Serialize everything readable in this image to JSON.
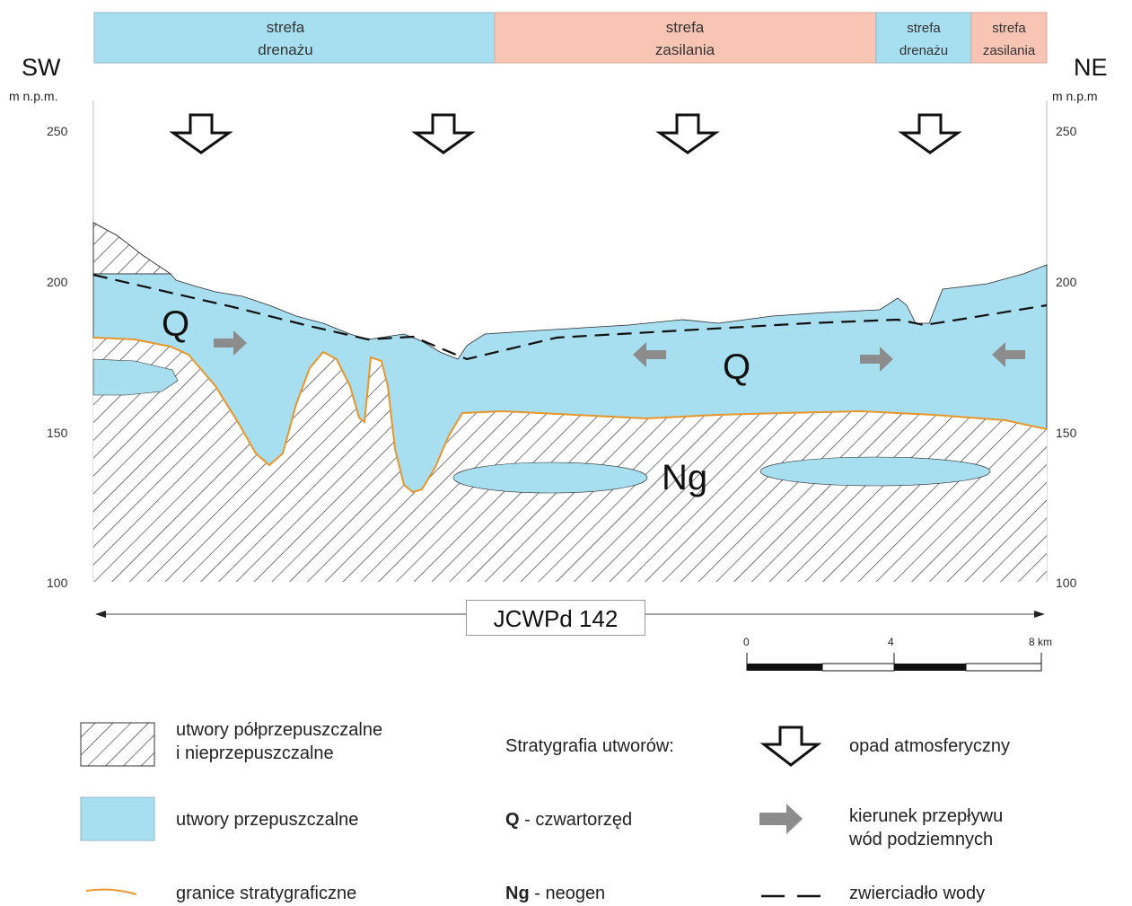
{
  "zones": [
    {
      "line1": "strefa",
      "line2": "drenażu",
      "color": "#a8dff0"
    },
    {
      "line1": "strefa",
      "line2": "zasilania",
      "color": "#f8c5b5"
    },
    {
      "line1": "strefa",
      "line2": "drenażu",
      "color": "#a8dff0"
    },
    {
      "line1": "strefa",
      "line2": "zasilania",
      "color": "#f8c5b5"
    }
  ],
  "directions": {
    "left": "SW",
    "right": "NE"
  },
  "axis_unit_left": "m n.p.m.",
  "axis_unit_right": "m n.p.m",
  "elevation_ticks": [
    "250",
    "200",
    "150",
    "100"
  ],
  "unit_labels": {
    "q_left": "Q",
    "q_right": "Q",
    "ng": "Ng"
  },
  "section_name": "JCWPd 142",
  "scale": {
    "start": "0",
    "mid": "4",
    "end": "8 km"
  },
  "legend": {
    "semi_permeable_line1": "utwory półprzepuszczalne",
    "semi_permeable_line2": "i nieprzepuszczalne",
    "permeable": "utwory przepuszczalne",
    "strat_boundaries": "granice stratygraficzne",
    "stratigraphy_title": "Stratygrafia utworów:",
    "q_code": "Q",
    "q_name": " - czwartorzęd",
    "ng_code": "Ng",
    "ng_name": " - neogen",
    "precipitation": "opad atmosferyczny",
    "flow_line1": "kierunek przepływu",
    "flow_line2": "wód podziemnych",
    "water_table": "zwierciadło wody"
  },
  "colors": {
    "permeable": "#a8dff0",
    "recharge": "#f8c5b5",
    "boundary": "#e8962a",
    "flow_arrow": "#8c8c8c"
  }
}
